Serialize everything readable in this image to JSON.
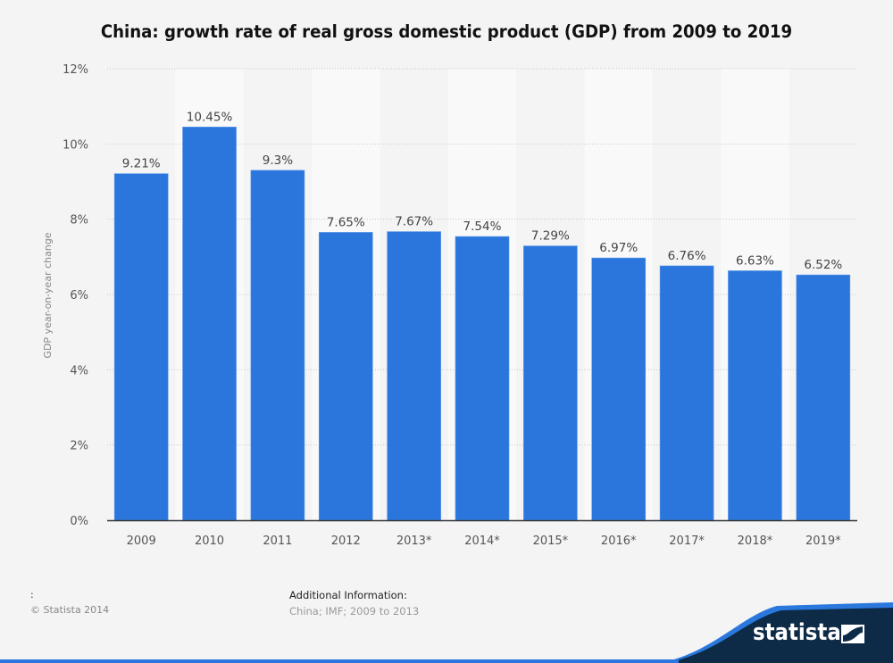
{
  "title": "China: growth rate of real gross domestic product (GDP) from 2009 to 2019",
  "footer": {
    "source_colon": ":",
    "copyright": "© Statista 2014",
    "additional_info_label": "Additional Information:",
    "additional_info_text": "China; IMF; 2009 to 2013"
  },
  "brand": {
    "name": "statista",
    "logo_icon": "statista-logo-icon",
    "colors": {
      "dark": "#0d2a46",
      "accent": "#2a78de"
    }
  },
  "colors": {
    "bar": "#2a76dd",
    "background": "#f4f4f4",
    "band": "#f9f9f9",
    "grid": "#c8c8c8",
    "axis": "#333333"
  },
  "chart_data": {
    "type": "bar",
    "title": "China: growth rate of real gross domestic product (GDP) from 2009 to 2019",
    "xlabel": "",
    "ylabel": "GDP year-on-year change",
    "categories": [
      "2009",
      "2010",
      "2011",
      "2012",
      "2013*",
      "2014*",
      "2015*",
      "2016*",
      "2017*",
      "2018*",
      "2019*"
    ],
    "values": [
      9.21,
      10.45,
      9.3,
      7.65,
      7.67,
      7.54,
      7.29,
      6.97,
      6.76,
      6.63,
      6.52
    ],
    "value_labels": [
      "9.21%",
      "10.45%",
      "9.3%",
      "7.65%",
      "7.67%",
      "7.54%",
      "7.29%",
      "6.97%",
      "6.76%",
      "6.63%",
      "6.52%"
    ],
    "ylim": [
      0,
      12
    ],
    "yticks": [
      0,
      2,
      4,
      6,
      8,
      10,
      12
    ],
    "ytick_labels": [
      "0%",
      "2%",
      "4%",
      "6%",
      "8%",
      "10%",
      "12%"
    ],
    "grid": true,
    "legend": "none"
  }
}
